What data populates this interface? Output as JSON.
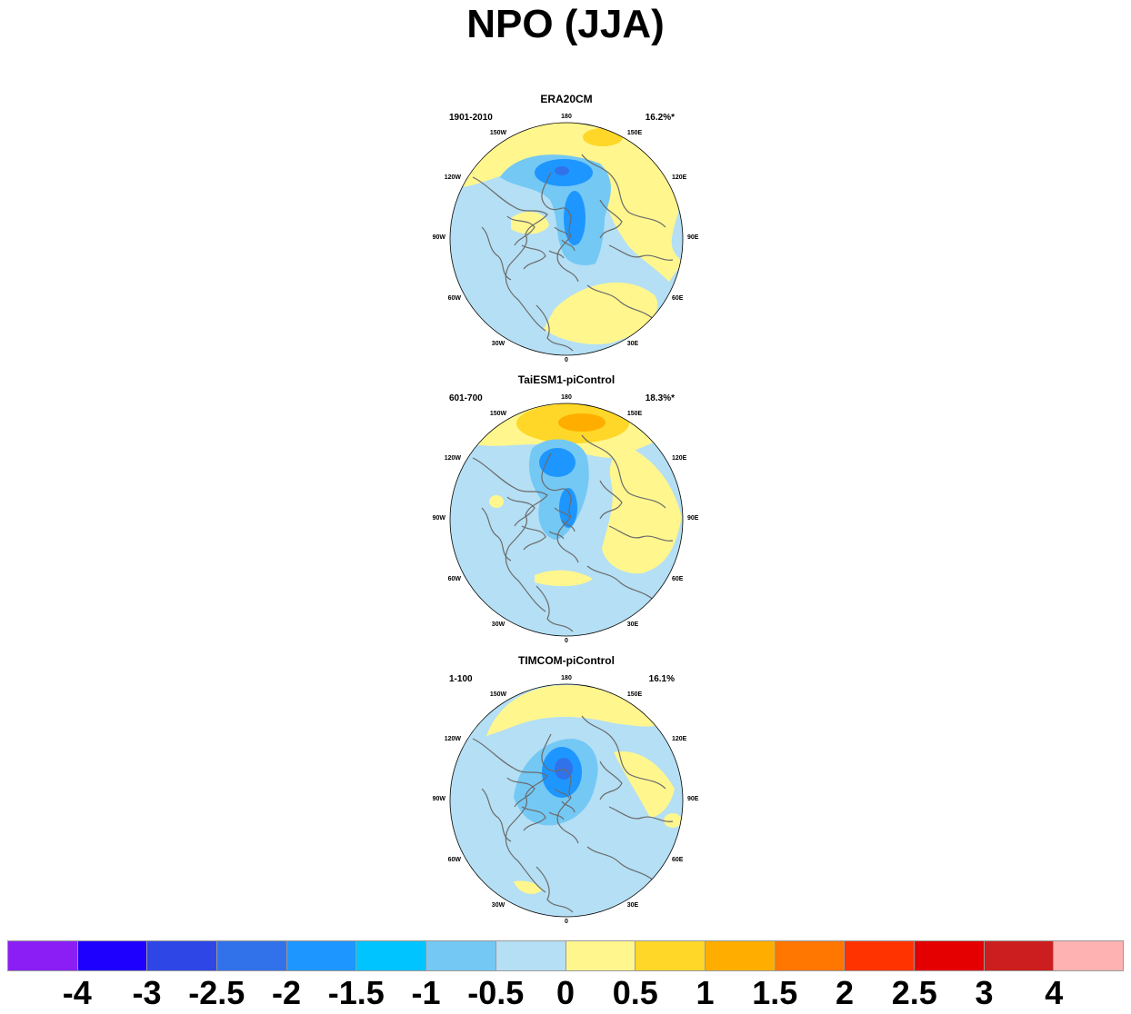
{
  "figure": {
    "title": "NPO (JJA)"
  },
  "longitude_labels": [
    "180",
    "150E",
    "120E",
    "90E",
    "60E",
    "30E",
    "0",
    "30W",
    "60W",
    "90W",
    "120W",
    "150W"
  ],
  "panels": [
    {
      "title": "ERA20CM",
      "period": "1901-2010",
      "variance": "16.2%*"
    },
    {
      "title": "TaiESM1-piControl",
      "period": "601-700",
      "variance": "18.3%*"
    },
    {
      "title": "TIMCOM-piControl",
      "period": "1-100",
      "variance": "16.1%"
    }
  ],
  "colorbar": {
    "colors": [
      "#8a1ef5",
      "#1e00ff",
      "#2e46e6",
      "#3172ea",
      "#1e96ff",
      "#00c4ff",
      "#74c8f4",
      "#b4dff4",
      "#fff68e",
      "#ffd728",
      "#ffae00",
      "#ff7600",
      "#ff3300",
      "#e40000",
      "#cc1e1e",
      "#ffb2b2"
    ],
    "labels": [
      "-4",
      "-3",
      "-2.5",
      "-2",
      "-1.5",
      "-1",
      "-0.5",
      "0",
      "0.5",
      "1",
      "1.5",
      "2",
      "2.5",
      "3",
      "4"
    ]
  }
}
